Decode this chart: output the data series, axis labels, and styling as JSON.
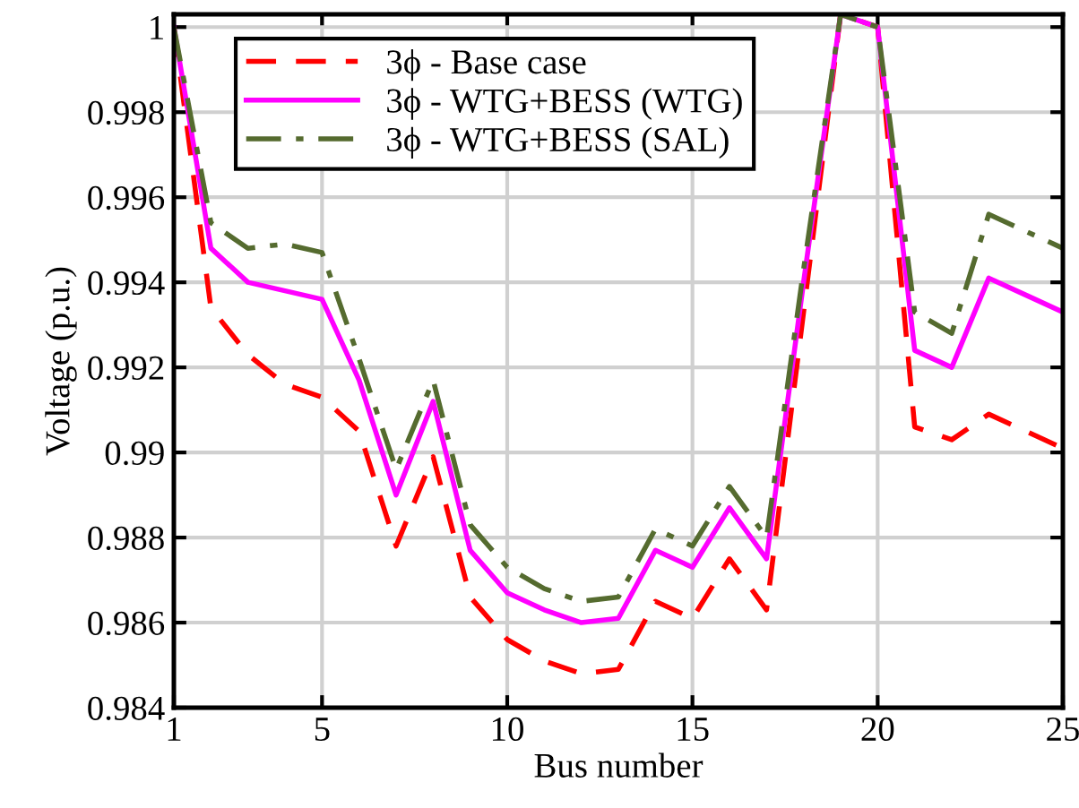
{
  "chart_data": {
    "type": "line",
    "xlabel": "Bus number",
    "ylabel": "Voltage (p.u.)",
    "x": [
      1,
      2,
      3,
      4,
      5,
      6,
      7,
      8,
      9,
      10,
      11,
      12,
      13,
      14,
      15,
      16,
      17,
      18,
      19,
      20,
      21,
      22,
      23,
      24,
      25
    ],
    "series": [
      {
        "name": "3ϕ - Base case",
        "color": "#ff0000",
        "line_style": "dashed",
        "values": [
          1.0,
          0.9934,
          0.9923,
          0.9916,
          0.9913,
          0.9905,
          0.9878,
          0.9899,
          0.9866,
          0.9856,
          0.9851,
          0.9848,
          0.9849,
          0.9865,
          0.9861,
          0.9875,
          0.9863,
          0.9933,
          1.0003,
          1.0,
          0.9906,
          0.9903,
          0.9909,
          0.9905,
          0.9901
        ]
      },
      {
        "name": "3ϕ - WTG+BESS (WTG)",
        "color": "#ff00ff",
        "line_style": "solid",
        "values": [
          1.0,
          0.9948,
          0.994,
          0.9938,
          0.9936,
          0.9917,
          0.989,
          0.9912,
          0.9877,
          0.9867,
          0.9863,
          0.986,
          0.9861,
          0.9877,
          0.9873,
          0.9887,
          0.9875,
          0.994,
          1.0003,
          1.0,
          0.9924,
          0.992,
          0.9941,
          0.9937,
          0.9933
        ]
      },
      {
        "name": "3ϕ - WTG+BESS (SAL)",
        "color": "#556b2f",
        "line_style": "dashdot",
        "values": [
          1.0,
          0.9954,
          0.9948,
          0.9949,
          0.9947,
          0.9922,
          0.9896,
          0.9917,
          0.9883,
          0.9873,
          0.9868,
          0.9865,
          0.9866,
          0.9882,
          0.9878,
          0.9892,
          0.988,
          0.9943,
          1.0003,
          1.0,
          0.9933,
          0.9928,
          0.9956,
          0.9952,
          0.9948
        ]
      }
    ],
    "xlim": [
      1,
      25
    ],
    "xticks": [
      1,
      5,
      10,
      15,
      20,
      25
    ],
    "ylim": [
      0.984,
      1.0003
    ],
    "yticks": [
      {
        "value": 0.984,
        "label": "0.984"
      },
      {
        "value": 0.986,
        "label": "0.986"
      },
      {
        "value": 0.988,
        "label": "0.988"
      },
      {
        "value": 0.99,
        "label": "0.99"
      },
      {
        "value": 0.992,
        "label": "0.992"
      },
      {
        "value": 0.994,
        "label": "0.994"
      },
      {
        "value": 0.996,
        "label": "0.996"
      },
      {
        "value": 0.998,
        "label": "0.998"
      },
      {
        "value": 1,
        "label": "1"
      }
    ],
    "grid": true,
    "legend": "top left"
  }
}
